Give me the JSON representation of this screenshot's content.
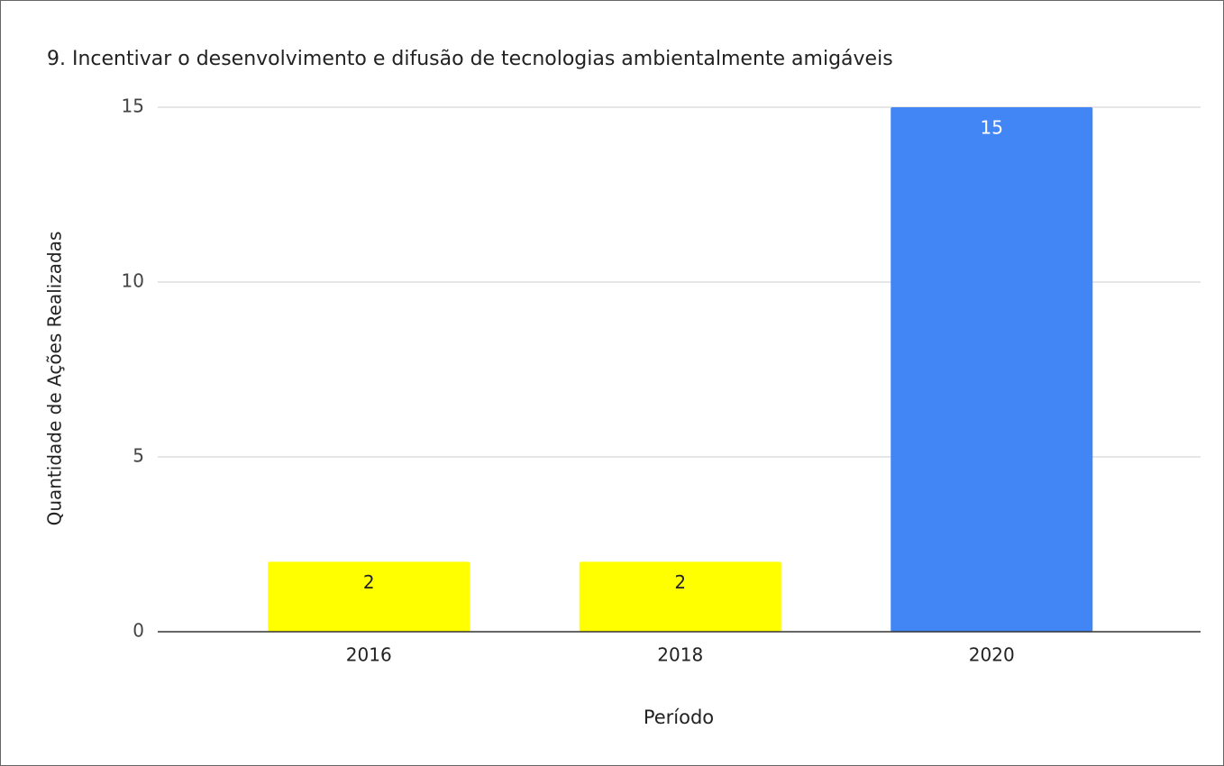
{
  "chart_data": {
    "type": "bar",
    "title": "9. Incentivar o desenvolvimento e difusão de tecnologias ambientalmente amigáveis",
    "x_label": "Período",
    "y_label": "Quantidade de Ações Realizadas",
    "categories": [
      "2016",
      "2018",
      "2020"
    ],
    "values": [
      2,
      2,
      15
    ],
    "colors": [
      "#ffff00",
      "#ffff00",
      "#4285f4"
    ],
    "ylim": [
      0,
      15
    ],
    "yticks": [
      0,
      5,
      10,
      15
    ],
    "grid": true
  }
}
